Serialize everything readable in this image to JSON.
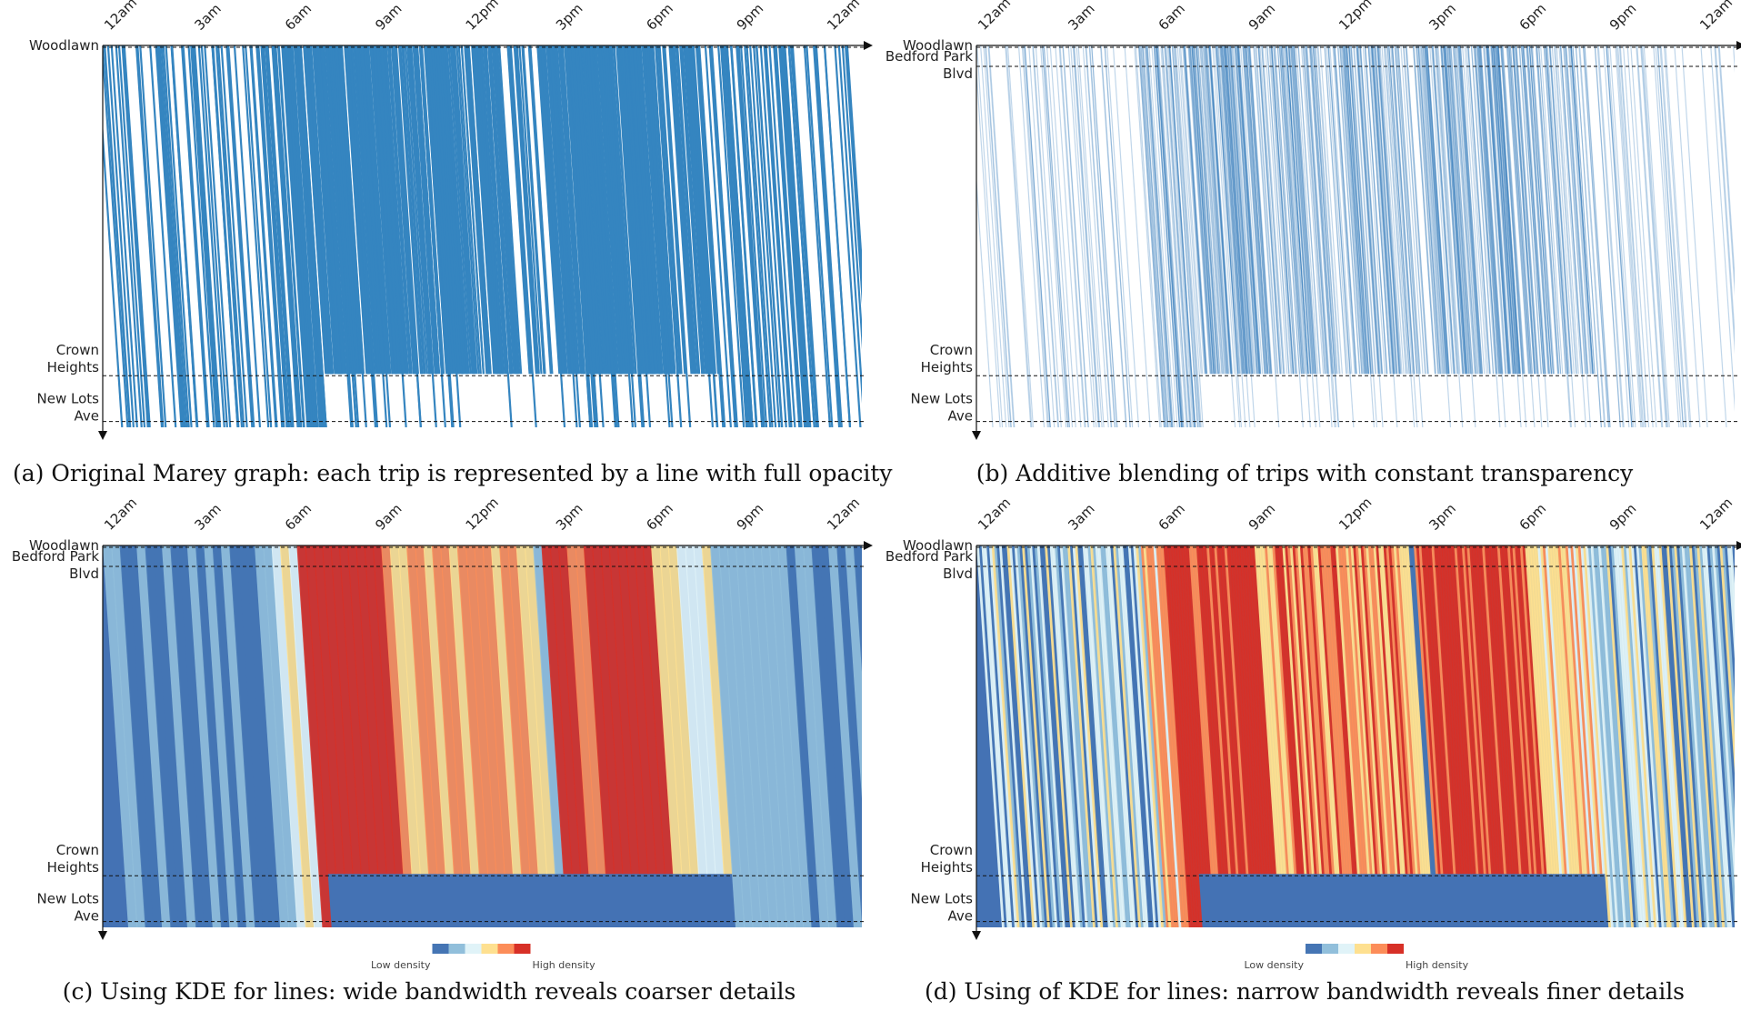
{
  "chart_data": [
    {
      "panel": "a",
      "type": "line",
      "mode": "marey",
      "caption": "(a) Original Marey graph: each trip is represented by a line with full opacity",
      "x_ticks": [
        "12am",
        "3am",
        "6am",
        "9am",
        "12pm",
        "3pm",
        "6pm",
        "9pm",
        "12am"
      ],
      "stations": [
        {
          "lines": [
            "Woodlawn"
          ],
          "pos": 0.0
        },
        {
          "lines": [
            "Crown",
            "Heights"
          ],
          "pos": 0.86
        },
        {
          "lines": [
            "New Lots",
            "Ave"
          ],
          "pos": 0.98
        }
      ],
      "series_color": "#3585c0",
      "opacity": 1.0
    },
    {
      "panel": "b",
      "type": "line",
      "mode": "marey",
      "caption": "(b) Additive blending of trips with constant transparency",
      "x_ticks": [
        "12am",
        "3am",
        "6am",
        "9am",
        "12pm",
        "3pm",
        "6pm",
        "9pm",
        "12am"
      ],
      "stations": [
        {
          "lines": [
            "Woodlawn"
          ],
          "pos": 0.0
        },
        {
          "lines": [
            "Bedford Park",
            "Blvd"
          ],
          "pos": 0.05
        },
        {
          "lines": [
            "Crown",
            "Heights"
          ],
          "pos": 0.86
        },
        {
          "lines": [
            "New Lots",
            "Ave"
          ],
          "pos": 0.98
        }
      ],
      "series_color": "#2f78b8",
      "opacity": 0.3
    },
    {
      "panel": "c",
      "type": "heatmap",
      "mode": "kde",
      "caption": "(c) Using KDE for lines: wide bandwidth reveals coarser details",
      "x_ticks": [
        "12am",
        "3am",
        "6am",
        "9am",
        "12pm",
        "3pm",
        "6pm",
        "9pm",
        "12am"
      ],
      "stations": [
        {
          "lines": [
            "Woodlawn"
          ],
          "pos": 0.0
        },
        {
          "lines": [
            "Bedford Park",
            "Blvd"
          ],
          "pos": 0.05
        },
        {
          "lines": [
            "Crown",
            "Heights"
          ],
          "pos": 0.86
        },
        {
          "lines": [
            "New Lots",
            "Ave"
          ],
          "pos": 0.98
        }
      ],
      "bandwidth": "wide",
      "legend": {
        "low": "Low density",
        "high": "High density"
      },
      "colormap": [
        "#4575b4",
        "#91bfdb",
        "#e0f3f8",
        "#fee090",
        "#fc8d59",
        "#d73027"
      ]
    },
    {
      "panel": "d",
      "type": "heatmap",
      "mode": "kde",
      "caption": "(d) Using of KDE for lines: narrow bandwidth reveals finer details",
      "x_ticks": [
        "12am",
        "3am",
        "6am",
        "9am",
        "12pm",
        "3pm",
        "6pm",
        "9pm",
        "12am"
      ],
      "stations": [
        {
          "lines": [
            "Woodlawn"
          ],
          "pos": 0.0
        },
        {
          "lines": [
            "Bedford Park",
            "Blvd"
          ],
          "pos": 0.05
        },
        {
          "lines": [
            "Crown",
            "Heights"
          ],
          "pos": 0.86
        },
        {
          "lines": [
            "New Lots",
            "Ave"
          ],
          "pos": 0.98
        }
      ],
      "bandwidth": "narrow",
      "legend": {
        "low": "Low density",
        "high": "High density"
      },
      "colormap": [
        "#4575b4",
        "#91bfdb",
        "#e0f3f8",
        "#fee090",
        "#fc8d59",
        "#d73027"
      ]
    }
  ]
}
